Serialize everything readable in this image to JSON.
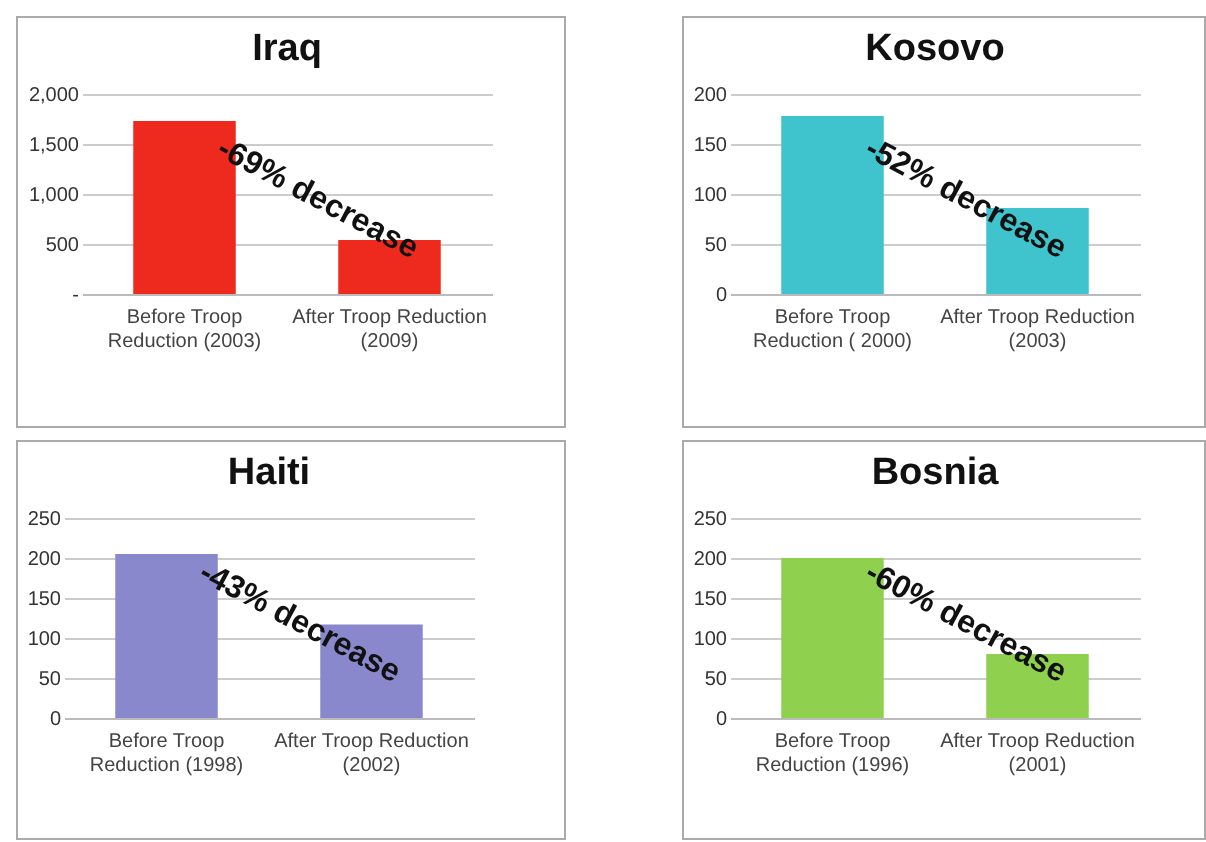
{
  "chart_data": [
    {
      "type": "bar",
      "title": "Iraq",
      "categories": [
        "Before Troop\nReduction (2003)",
        "After Troop Reduction\n(2009)"
      ],
      "values": [
        1730,
        540
      ],
      "color": "#ee2a1e",
      "ylim": [
        0,
        2000
      ],
      "yticks": [
        {
          "value": 0,
          "label": "-"
        },
        500,
        {
          "value": 1000,
          "label": "1,000"
        },
        {
          "value": 1500,
          "label": "1,500"
        },
        {
          "value": 2000,
          "label": "2,000"
        }
      ],
      "grid": "y",
      "annotations": [
        "-69% decrease"
      ]
    },
    {
      "type": "bar",
      "title": "Kosovo",
      "categories": [
        "Before Troop\nReduction ( 2000)",
        "After Troop Reduction\n(2003)"
      ],
      "values": [
        178,
        86
      ],
      "color": "#3fc3cc",
      "ylim": [
        0,
        200
      ],
      "yticks": [
        0,
        50,
        100,
        150,
        200
      ],
      "grid": "y",
      "annotations": [
        "-52% decrease"
      ]
    },
    {
      "type": "bar",
      "title": "Haiti",
      "categories": [
        "Before Troop\nReduction (1998)",
        "After Troop Reduction\n(2002)"
      ],
      "values": [
        205,
        117
      ],
      "color": "#8a88cc",
      "ylim": [
        0,
        250
      ],
      "yticks": [
        0,
        50,
        100,
        150,
        200,
        250
      ],
      "grid": "y",
      "annotations": [
        "-43% decrease"
      ]
    },
    {
      "type": "bar",
      "title": "Bosnia",
      "categories": [
        "Before Troop\nReduction (1996)",
        "After Troop Reduction\n(2001)"
      ],
      "values": [
        200,
        80
      ],
      "color": "#8fd14f",
      "ylim": [
        0,
        250
      ],
      "yticks": [
        0,
        50,
        100,
        150,
        200,
        250
      ],
      "grid": "y",
      "annotations": [
        "-60% decrease"
      ]
    }
  ]
}
